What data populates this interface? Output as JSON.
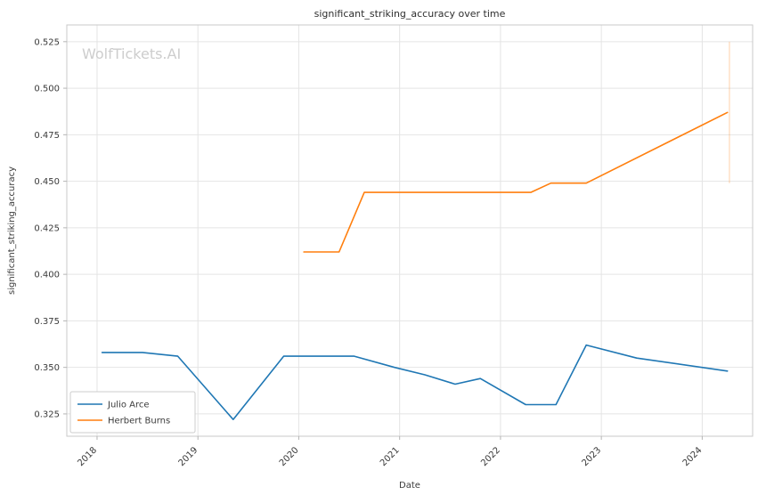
{
  "chart_data": {
    "type": "line",
    "title": "significant_striking_accuracy over time",
    "xlabel": "Date",
    "ylabel": "significant_striking_accuracy",
    "watermark": "WolfTickets.AI",
    "grid": true,
    "legend_position": "lower-left",
    "xlim": [
      2017.7,
      2024.5
    ],
    "ylim": [
      0.313,
      0.534
    ],
    "x_ticks": [
      2018,
      2019,
      2020,
      2021,
      2022,
      2023,
      2024
    ],
    "y_ticks": [
      0.325,
      0.35,
      0.375,
      0.4,
      0.425,
      0.45,
      0.475,
      0.5,
      0.525
    ],
    "series": [
      {
        "name": "Julio Arce",
        "color": "#1f77b4",
        "points": [
          [
            2018.05,
            0.358
          ],
          [
            2018.45,
            0.358
          ],
          [
            2018.8,
            0.356
          ],
          [
            2019.35,
            0.322
          ],
          [
            2019.85,
            0.356
          ],
          [
            2020.55,
            0.356
          ],
          [
            2020.95,
            0.35
          ],
          [
            2021.25,
            0.346
          ],
          [
            2021.55,
            0.341
          ],
          [
            2021.8,
            0.344
          ],
          [
            2022.25,
            0.33
          ],
          [
            2022.55,
            0.33
          ],
          [
            2022.85,
            0.362
          ],
          [
            2023.35,
            0.355
          ],
          [
            2024.25,
            0.348
          ]
        ]
      },
      {
        "name": "Herbert Burns",
        "color": "#ff7f0e",
        "points": [
          [
            2020.05,
            0.412
          ],
          [
            2020.4,
            0.412
          ],
          [
            2020.65,
            0.444
          ],
          [
            2022.3,
            0.444
          ],
          [
            2022.5,
            0.449
          ],
          [
            2022.85,
            0.449
          ],
          [
            2024.25,
            0.487
          ]
        ]
      }
    ],
    "annotations": [
      {
        "type": "vline",
        "x": 2024.27,
        "y1": 0.449,
        "y2": 0.525,
        "color": "#ff7f0e",
        "opacity": 0.35
      }
    ]
  }
}
